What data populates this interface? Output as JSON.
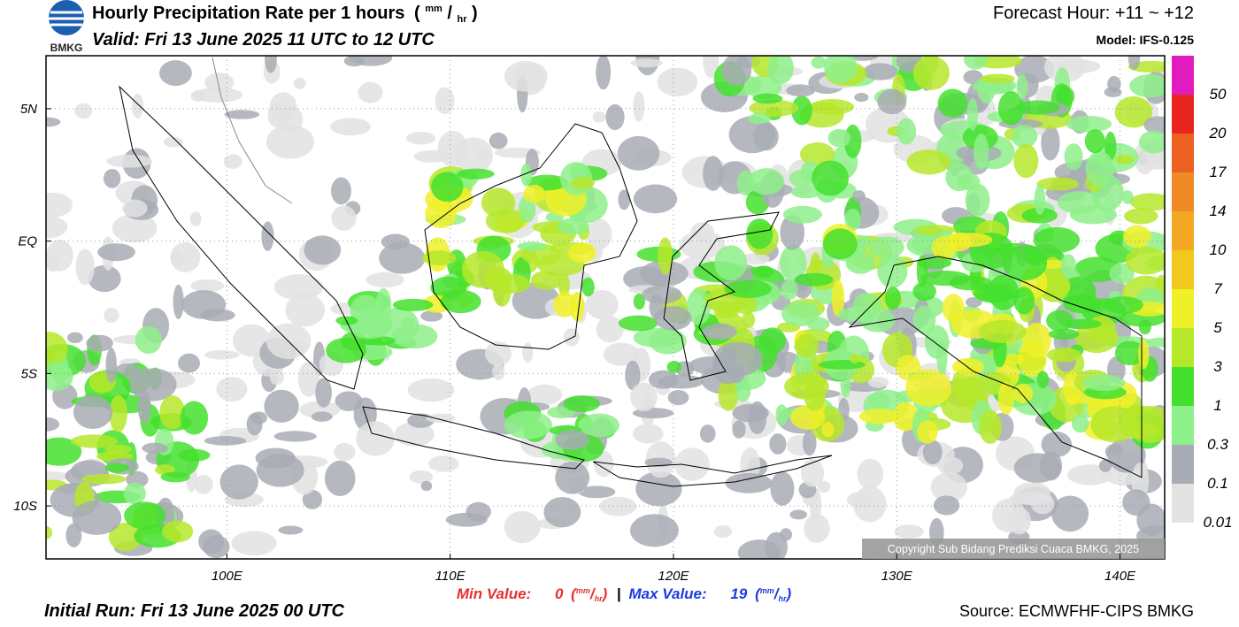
{
  "header": {
    "logo_text": "BMKG",
    "title": "Hourly Precipitation Rate per 1 hours",
    "unit": [
      "(",
      "mm",
      "/",
      "hr",
      ")"
    ],
    "valid": "Valid: Fri 13 June 2025 11 UTC to 12 UTC",
    "forecast_hour": "Forecast Hour: +11 ~ +12",
    "model": "Model: IFS-0.125"
  },
  "map": {
    "lonlim": [
      91.9,
      142
    ],
    "latlim": [
      -12,
      7
    ],
    "lon_ticks": [
      {
        "value": 100,
        "label": "100E"
      },
      {
        "value": 110,
        "label": "110E"
      },
      {
        "value": 120,
        "label": "120E"
      },
      {
        "value": 130,
        "label": "130E"
      },
      {
        "value": 140,
        "label": "140E"
      }
    ],
    "lat_ticks": [
      {
        "value": 5,
        "label": "5N"
      },
      {
        "value": 0,
        "label": "EQ"
      },
      {
        "value": -5,
        "label": "5S"
      },
      {
        "value": -10,
        "label": "10S"
      }
    ],
    "copyright": "Copyright Sub Bidang Prediksi Cuaca BMKG, 2025"
  },
  "colorbar": {
    "levels": [
      50,
      20,
      17,
      14,
      10,
      7,
      5,
      3,
      1,
      0.3,
      0.1,
      0.01
    ],
    "colors": [
      "#e01cbf",
      "#e8261e",
      "#ec6120",
      "#f08a25",
      "#f2a823",
      "#f2c81f",
      "#f0f028",
      "#b6e82a",
      "#44e02e",
      "#8ef08a",
      "#a8acb4",
      "#e2e2e2"
    ]
  },
  "footer": {
    "min_label": "Min Value:",
    "min_value": 0,
    "separator": "|",
    "max_label": "Max Value:",
    "max_value": 19,
    "initial_run": "Initial Run: Fri 13 June 2025 00 UTC",
    "source": "Source: ECMWFHF-CIPS BMKG"
  }
}
